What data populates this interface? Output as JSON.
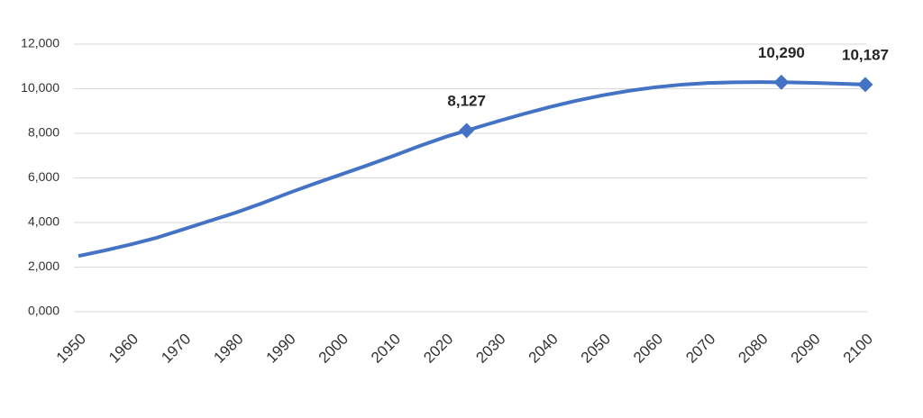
{
  "chart_data": {
    "type": "line",
    "x": [
      1950,
      1955,
      1960,
      1965,
      1970,
      1975,
      1980,
      1985,
      1990,
      1995,
      2000,
      2005,
      2010,
      2015,
      2020,
      2024,
      2030,
      2035,
      2040,
      2045,
      2050,
      2055,
      2060,
      2065,
      2070,
      2075,
      2080,
      2084,
      2085,
      2090,
      2095,
      2100
    ],
    "series": [
      {
        "color": "#4472c4",
        "values": [
          2499,
          2746,
          3019,
          3322,
          3695,
          4070,
          4444,
          4862,
          5316,
          5743,
          6149,
          6558,
          6986,
          7427,
          7841,
          8127,
          8546,
          8879,
          9188,
          9468,
          9709,
          9910,
          10068,
          10184,
          10258,
          10289,
          10296,
          10290,
          10288,
          10262,
          10229,
          10187
        ],
        "value_labels": [
          null,
          null,
          null,
          null,
          null,
          null,
          null,
          null,
          null,
          null,
          null,
          null,
          null,
          null,
          null,
          "8,127",
          null,
          null,
          null,
          null,
          null,
          null,
          null,
          null,
          null,
          null,
          null,
          "10,290",
          null,
          null,
          null,
          "10,187"
        ]
      }
    ],
    "xlim": [
      1950,
      2100
    ],
    "xticks": [
      1950,
      1960,
      1970,
      1980,
      1990,
      2000,
      2010,
      2020,
      2030,
      2040,
      2050,
      2060,
      2070,
      2080,
      2090,
      2100
    ],
    "ylim": [
      0,
      12000
    ],
    "yticks": [
      {
        "value": 0,
        "label": "0,000"
      },
      {
        "value": 2000,
        "label": "2,000"
      },
      {
        "value": 4000,
        "label": "4,000"
      },
      {
        "value": 6000,
        "label": "6,000"
      },
      {
        "value": 8000,
        "label": "8,000"
      },
      {
        "value": 10000,
        "label": "10,000"
      },
      {
        "value": 12000,
        "label": "12,000"
      }
    ],
    "grid": true
  }
}
